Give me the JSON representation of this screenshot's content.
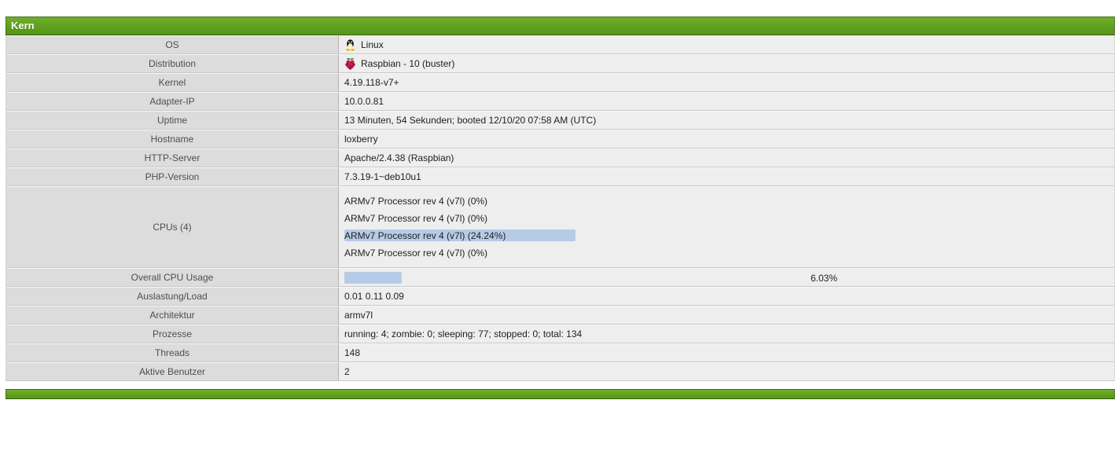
{
  "header": {
    "title": "Kern"
  },
  "colors": {
    "accent_green": "#5fa01d",
    "usage_bar_blue": "#b6cbe8",
    "label_bg": "#dcdcdc",
    "value_bg": "#eeeeee"
  },
  "icons": {
    "os": "linux-tux-icon",
    "distribution": "raspberry-icon"
  },
  "rows": {
    "os": {
      "label": "OS",
      "value": "Linux"
    },
    "distribution": {
      "label": "Distribution",
      "value": "Raspbian - 10 (buster)"
    },
    "kernel": {
      "label": "Kernel",
      "value": "4.19.118-v7+"
    },
    "adapter_ip": {
      "label": "Adapter-IP",
      "value": "10.0.0.81"
    },
    "uptime": {
      "label": "Uptime",
      "value": "13 Minuten, 54 Sekunden; booted 12/10/20 07:58 AM (UTC)"
    },
    "hostname": {
      "label": "Hostname",
      "value": "loxberry"
    },
    "http_server": {
      "label": "HTTP-Server",
      "value": "Apache/2.4.38 (Raspbian)"
    },
    "php_version": {
      "label": "PHP-Version",
      "value": "7.3.19-1~deb10u1"
    },
    "cpus": {
      "label": "CPUs (4)",
      "cores": [
        {
          "text": "ARMv7 Processor rev 4 (v7l) (0%)",
          "usage_percent": 0
        },
        {
          "text": "ARMv7 Processor rev 4 (v7l) (0%)",
          "usage_percent": 0
        },
        {
          "text": "ARMv7 Processor rev 4 (v7l) (24.24%)",
          "usage_percent": 24.24
        },
        {
          "text": "ARMv7 Processor rev 4 (v7l) (0%)",
          "usage_percent": 0
        }
      ]
    },
    "overall_cpu": {
      "label": "Overall CPU Usage",
      "value": "6.03%",
      "usage_percent": 6.03
    },
    "load": {
      "label": "Auslastung/Load",
      "value": "0.01 0.11 0.09"
    },
    "architecture": {
      "label": "Architektur",
      "value": "armv7l"
    },
    "processes": {
      "label": "Prozesse",
      "value": "running: 4; zombie: 0; sleeping: 77; stopped: 0; total: 134"
    },
    "threads": {
      "label": "Threads",
      "value": "148"
    },
    "active_users": {
      "label": "Aktive Benutzer",
      "value": "2"
    }
  }
}
